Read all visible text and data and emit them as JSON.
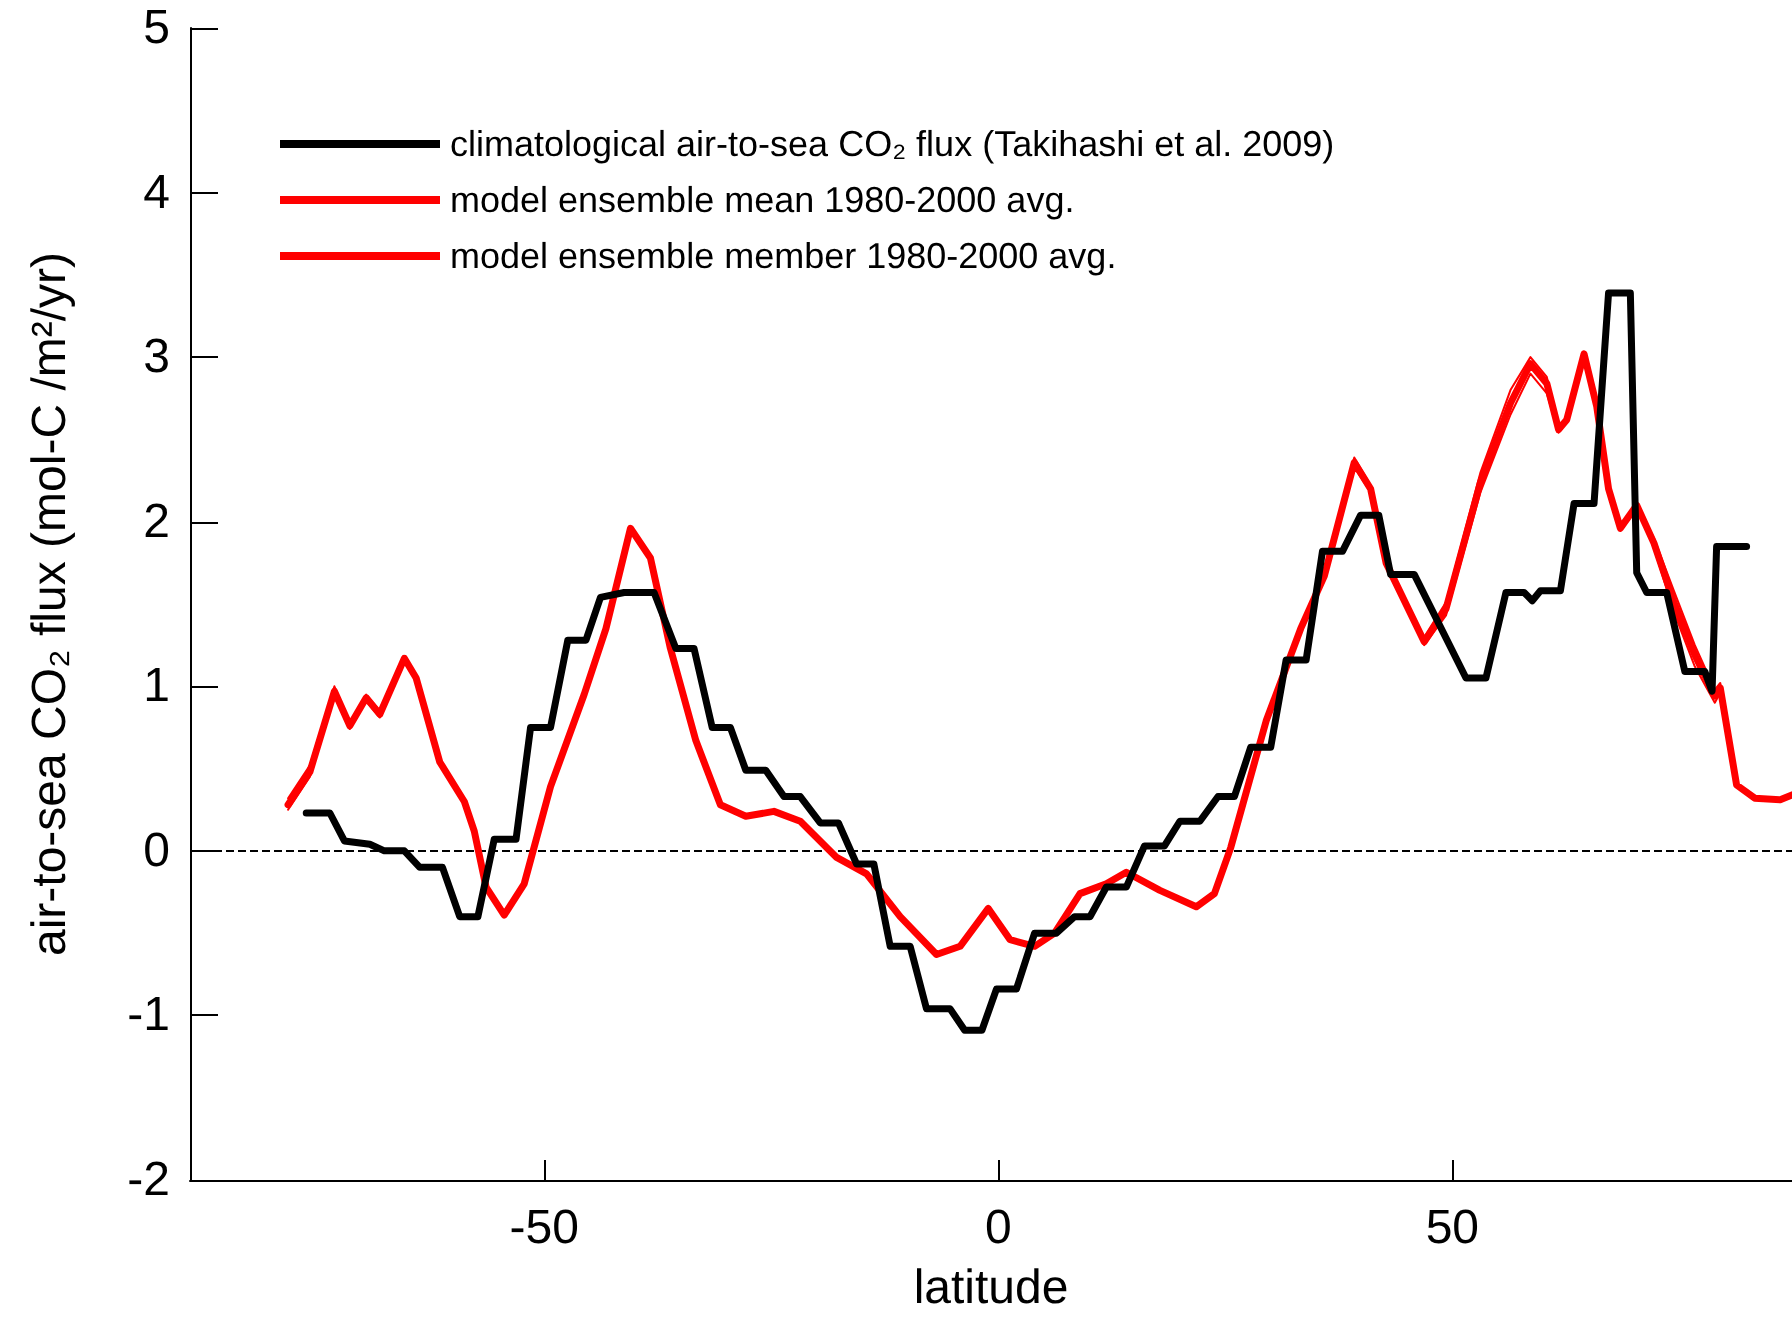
{
  "chart_data": {
    "type": "line",
    "xlabel": "latitude",
    "ylabel": "air-to-sea CO₂ flux (mol-C /m²/yr)",
    "xlim": [
      -89,
      87.4
    ],
    "xticks": [
      -50,
      0,
      50
    ],
    "ylim": [
      -2,
      5
    ],
    "yticks": [
      -2,
      -1,
      0,
      1,
      2,
      3,
      4,
      5
    ],
    "grid": false,
    "legend": "top left",
    "marker": "none",
    "line_style": "solid",
    "ref_lines": [
      {
        "axis": "y",
        "value": 0,
        "color": "#000000",
        "line_style": "dashed"
      }
    ],
    "series": [
      {
        "name": "climatological air-to-sea CO₂ flux (Takihashi et al. 2009)",
        "color": "#000000",
        "x": [
          -76.2,
          -73.6,
          -72.0,
          -69.2,
          -67.6,
          -65.4,
          -63.7,
          -61.2,
          -59.3,
          -57.3,
          -55.5,
          -53.1,
          -51.5,
          -49.3,
          -47.4,
          -45.4,
          -43.8,
          -41.2,
          -37.9,
          -35.5,
          -33.5,
          -31.5,
          -29.5,
          -27.8,
          -25.6,
          -23.6,
          -21.8,
          -19.6,
          -17.6,
          -15.6,
          -13.7,
          -11.9,
          -9.7,
          -7.9,
          -5.3,
          -3.7,
          -1.8,
          -0.2,
          2.0,
          4.0,
          6.4,
          8.4,
          10.1,
          11.9,
          14.1,
          16.1,
          18.3,
          20.0,
          22.2,
          24.2,
          26.0,
          27.8,
          30.0,
          31.7,
          33.9,
          35.7,
          37.9,
          39.9,
          41.9,
          43.2,
          45.8,
          51.5,
          53.7,
          55.9,
          57.9,
          58.8,
          59.7,
          61.9,
          63.4,
          65.6,
          67.2,
          69.6,
          70.3,
          71.4,
          73.6,
          75.6,
          77.8,
          78.6,
          79.1,
          82.4
        ],
        "values": [
          0.23,
          0.23,
          0.06,
          0.04,
          0.0,
          0.0,
          -0.1,
          -0.1,
          -0.4,
          -0.4,
          0.07,
          0.07,
          0.75,
          0.75,
          1.28,
          1.28,
          1.54,
          1.57,
          1.57,
          1.23,
          1.23,
          0.75,
          0.75,
          0.49,
          0.49,
          0.33,
          0.33,
          0.17,
          0.17,
          -0.08,
          -0.08,
          -0.58,
          -0.58,
          -0.96,
          -0.96,
          -1.09,
          -1.09,
          -0.84,
          -0.84,
          -0.5,
          -0.5,
          -0.4,
          -0.4,
          -0.22,
          -0.22,
          0.03,
          0.03,
          0.18,
          0.18,
          0.33,
          0.33,
          0.63,
          0.63,
          1.16,
          1.16,
          1.82,
          1.82,
          2.04,
          2.04,
          1.68,
          1.68,
          1.05,
          1.05,
          1.57,
          1.57,
          1.52,
          1.58,
          1.58,
          2.11,
          2.11,
          3.39,
          3.39,
          1.69,
          1.57,
          1.57,
          1.09,
          1.09,
          0.97,
          1.85,
          1.85
        ]
      },
      {
        "name": "model ensemble mean 1980-2000 avg.",
        "color": "#ff0000",
        "x": [
          -78.2,
          -75.8,
          -73.1,
          -71.4,
          -69.6,
          -68.1,
          -65.4,
          -64.1,
          -61.5,
          -58.8,
          -57.7,
          -56.4,
          -54.4,
          -52.2,
          -49.3,
          -45.6,
          -43.2,
          -40.5,
          -38.3,
          -36.1,
          -33.3,
          -30.6,
          -27.8,
          -24.7,
          -21.8,
          -17.8,
          -14.5,
          -10.8,
          -6.8,
          -4.2,
          -1.1,
          1.3,
          4.0,
          6.2,
          9.0,
          11.9,
          14.1,
          17.8,
          21.8,
          23.8,
          25.6,
          29.5,
          33.3,
          35.9,
          39.2,
          41.0,
          42.7,
          46.9,
          49.3,
          53.1,
          56.4,
          58.6,
          60.4,
          61.7,
          62.6,
          64.5,
          65.9,
          67.2,
          68.5,
          70.3,
          72.2,
          74.4,
          76.7,
          78.9,
          79.5,
          81.3,
          83.3,
          86.1,
          87.4
        ],
        "values": [
          0.28,
          0.48,
          0.97,
          0.76,
          0.93,
          0.83,
          1.17,
          1.05,
          0.54,
          0.3,
          0.12,
          -0.22,
          -0.39,
          -0.2,
          0.39,
          0.95,
          1.35,
          1.96,
          1.78,
          1.23,
          0.67,
          0.28,
          0.21,
          0.24,
          0.18,
          -0.04,
          -0.14,
          -0.4,
          -0.63,
          -0.58,
          -0.35,
          -0.54,
          -0.58,
          -0.5,
          -0.26,
          -0.2,
          -0.13,
          -0.24,
          -0.34,
          -0.26,
          0.02,
          0.79,
          1.35,
          1.67,
          2.36,
          2.2,
          1.75,
          1.27,
          1.47,
          2.24,
          2.72,
          2.96,
          2.84,
          2.56,
          2.62,
          3.02,
          2.7,
          2.2,
          1.96,
          2.1,
          1.87,
          1.51,
          1.19,
          0.94,
          0.99,
          0.4,
          0.32,
          0.31,
          0.34
        ]
      },
      {
        "name": "model ensemble member 1980-2000 avg.",
        "color": "#ff0000",
        "x": [
          -78.2,
          -75.8,
          -73.1,
          -71.4,
          -69.6,
          -68.1,
          -65.4,
          -64.1,
          -61.5,
          -58.8,
          -57.7,
          -56.4,
          -54.4,
          -52.2,
          -49.3,
          -45.6,
          -43.2,
          -40.5,
          -38.3,
          -36.1,
          -33.3,
          -30.6,
          -27.8,
          -24.7,
          -21.8,
          -17.8,
          -14.5,
          -10.8,
          -6.8,
          -4.2,
          -1.1,
          1.3,
          4.0,
          6.2,
          9.0,
          11.9,
          14.1,
          17.8,
          21.8,
          23.8,
          25.6,
          29.5,
          33.3,
          35.9,
          39.2,
          41.0,
          42.7,
          46.9,
          49.3,
          53.1,
          56.4,
          58.6,
          60.4,
          61.7,
          62.6,
          64.5,
          65.9,
          67.2,
          68.5,
          70.3,
          72.2,
          74.4,
          76.7,
          78.9,
          79.5,
          81.3,
          83.3,
          86.1,
          87.4
        ],
        "values": [
          0.32,
          0.52,
          1.0,
          0.78,
          0.95,
          0.85,
          1.18,
          1.06,
          0.55,
          0.31,
          0.12,
          -0.22,
          -0.39,
          -0.2,
          0.39,
          0.95,
          1.35,
          1.97,
          1.79,
          1.23,
          0.67,
          0.28,
          0.21,
          0.24,
          0.18,
          -0.04,
          -0.14,
          -0.4,
          -0.63,
          -0.58,
          -0.35,
          -0.54,
          -0.58,
          -0.5,
          -0.26,
          -0.2,
          -0.13,
          -0.24,
          -0.34,
          -0.26,
          0.02,
          0.79,
          1.35,
          1.69,
          2.39,
          2.22,
          1.76,
          1.3,
          1.51,
          2.3,
          2.8,
          3.0,
          2.88,
          2.58,
          2.62,
          3.02,
          2.7,
          2.2,
          1.96,
          2.1,
          1.9,
          1.58,
          1.25,
          0.98,
          1.02,
          0.4,
          0.32,
          0.31,
          0.34
        ]
      },
      {
        "color": "#ff0000",
        "x": [
          -78.2,
          -75.8,
          -73.1,
          -71.4,
          -69.6,
          -68.1,
          -65.4,
          -64.1,
          -61.5,
          -58.8,
          -57.7,
          -56.4,
          -54.4,
          -52.2,
          -49.3,
          -45.6,
          -43.2,
          -40.5,
          -38.3,
          -36.1,
          -33.3,
          -30.6,
          -27.8,
          -24.7,
          -21.8,
          -17.8,
          -14.5,
          -10.8,
          -6.8,
          -4.2,
          -1.1,
          1.3,
          4.0,
          6.2,
          9.0,
          11.9,
          14.1,
          17.8,
          21.8,
          23.8,
          25.6,
          29.5,
          33.3,
          35.9,
          39.2,
          41.0,
          42.7,
          46.9,
          49.3,
          53.1,
          56.4,
          58.6,
          60.4,
          61.7,
          62.6,
          64.5,
          65.9,
          67.2,
          68.5,
          70.3,
          72.2,
          74.4,
          76.7,
          78.9,
          79.5,
          81.3,
          83.3,
          86.1,
          87.4
        ],
        "values": [
          0.25,
          0.45,
          0.94,
          0.74,
          0.91,
          0.81,
          1.16,
          1.04,
          0.53,
          0.29,
          0.12,
          -0.22,
          -0.39,
          -0.2,
          0.39,
          0.95,
          1.35,
          1.95,
          1.77,
          1.23,
          0.67,
          0.28,
          0.21,
          0.24,
          0.18,
          -0.04,
          -0.14,
          -0.4,
          -0.63,
          -0.58,
          -0.35,
          -0.54,
          -0.58,
          -0.5,
          -0.26,
          -0.2,
          -0.13,
          -0.24,
          -0.34,
          -0.26,
          0.02,
          0.79,
          1.35,
          1.65,
          2.33,
          2.18,
          1.74,
          1.25,
          1.43,
          2.18,
          2.65,
          2.9,
          2.78,
          2.54,
          2.62,
          3.02,
          2.7,
          2.2,
          1.96,
          2.1,
          1.84,
          1.45,
          1.12,
          0.9,
          0.96,
          0.4,
          0.32,
          0.31,
          0.34
        ]
      }
    ]
  }
}
